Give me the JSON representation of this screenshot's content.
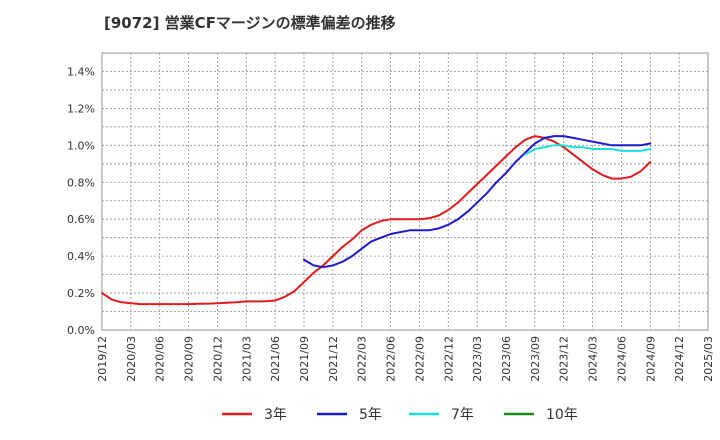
{
  "chart_data": {
    "type": "line",
    "title": "[9072]  営業CFマージンの標準偏差の推移",
    "xlabel": "",
    "ylabel": "",
    "ylim": [
      0,
      0.015
    ],
    "y_ticks": [
      {
        "value": 0.0,
        "label": "0.0%"
      },
      {
        "value": 0.002,
        "label": "0.2%"
      },
      {
        "value": 0.004,
        "label": "0.4%"
      },
      {
        "value": 0.006,
        "label": "0.6%"
      },
      {
        "value": 0.008,
        "label": "0.8%"
      },
      {
        "value": 0.01,
        "label": "1.0%"
      },
      {
        "value": 0.012,
        "label": "1.2%"
      },
      {
        "value": 0.014,
        "label": "1.4%"
      }
    ],
    "x_ticks": [
      "2019/12",
      "2020/03",
      "2020/06",
      "2020/09",
      "2020/12",
      "2021/03",
      "2021/06",
      "2021/09",
      "2021/12",
      "2022/03",
      "2022/06",
      "2022/09",
      "2022/12",
      "2023/03",
      "2023/06",
      "2023/09",
      "2023/12",
      "2024/03",
      "2024/06",
      "2024/09",
      "2024/12",
      "2025/03"
    ],
    "grid": true,
    "legend_position": "bottom",
    "series": [
      {
        "name": "3年",
        "color": "#dd1c1c",
        "x": [
          "2019/12",
          "2020/01",
          "2020/02",
          "2020/03",
          "2020/04",
          "2020/05",
          "2020/06",
          "2020/07",
          "2020/08",
          "2020/09",
          "2020/10",
          "2020/11",
          "2020/12",
          "2021/01",
          "2021/02",
          "2021/03",
          "2021/04",
          "2021/05",
          "2021/06",
          "2021/07",
          "2021/08",
          "2021/09",
          "2021/10",
          "2021/11",
          "2021/12",
          "2022/01",
          "2022/02",
          "2022/03",
          "2022/04",
          "2022/05",
          "2022/06",
          "2022/07",
          "2022/08",
          "2022/09",
          "2022/10",
          "2022/11",
          "2022/12",
          "2023/01",
          "2023/02",
          "2023/03",
          "2023/04",
          "2023/05",
          "2023/06",
          "2023/07",
          "2023/08",
          "2023/09",
          "2023/10",
          "2023/11",
          "2023/12",
          "2024/01",
          "2024/02",
          "2024/03",
          "2024/04",
          "2024/05",
          "2024/06",
          "2024/07",
          "2024/08",
          "2024/09"
        ],
        "values": [
          0.002,
          0.00165,
          0.0015,
          0.00145,
          0.0014,
          0.0014,
          0.0014,
          0.0014,
          0.0014,
          0.0014,
          0.00142,
          0.00143,
          0.00145,
          0.00148,
          0.0015,
          0.00155,
          0.00155,
          0.00156,
          0.0016,
          0.0018,
          0.0021,
          0.0026,
          0.0031,
          0.0035,
          0.004,
          0.0045,
          0.0049,
          0.0054,
          0.0057,
          0.0059,
          0.006,
          0.006,
          0.006,
          0.006,
          0.00605,
          0.0062,
          0.0065,
          0.0069,
          0.0074,
          0.0079,
          0.0084,
          0.0089,
          0.0094,
          0.0099,
          0.0103,
          0.0105,
          0.0104,
          0.0102,
          0.0099,
          0.0095,
          0.0091,
          0.0087,
          0.0084,
          0.0082,
          0.0082,
          0.0083,
          0.0086,
          0.0091
        ]
      },
      {
        "name": "5年",
        "color": "#1c1ccc",
        "x": [
          "2021/09",
          "2021/10",
          "2021/11",
          "2021/12",
          "2022/01",
          "2022/02",
          "2022/03",
          "2022/04",
          "2022/05",
          "2022/06",
          "2022/07",
          "2022/08",
          "2022/09",
          "2022/10",
          "2022/11",
          "2022/12",
          "2023/01",
          "2023/02",
          "2023/03",
          "2023/04",
          "2023/05",
          "2023/06",
          "2023/07",
          "2023/08",
          "2023/09",
          "2023/10",
          "2023/11",
          "2023/12",
          "2024/01",
          "2024/02",
          "2024/03",
          "2024/04",
          "2024/05",
          "2024/06",
          "2024/07",
          "2024/08",
          "2024/09"
        ],
        "values": [
          0.0038,
          0.0035,
          0.0034,
          0.0035,
          0.0037,
          0.004,
          0.0044,
          0.0048,
          0.005,
          0.0052,
          0.0053,
          0.0054,
          0.0054,
          0.0054,
          0.0055,
          0.0057,
          0.006,
          0.0064,
          0.0069,
          0.0074,
          0.008,
          0.0085,
          0.0091,
          0.0096,
          0.0101,
          0.0104,
          0.0105,
          0.0105,
          0.0104,
          0.0103,
          0.0102,
          0.0101,
          0.01,
          0.01,
          0.01,
          0.01,
          0.0101
        ]
      },
      {
        "name": "7年",
        "color": "#1ce0e0",
        "x": [
          "2023/08",
          "2023/09",
          "2023/10",
          "2023/11",
          "2023/12",
          "2024/01",
          "2024/02",
          "2024/03",
          "2024/04",
          "2024/05",
          "2024/06",
          "2024/07",
          "2024/08",
          "2024/09"
        ],
        "values": [
          0.0095,
          0.0098,
          0.0099,
          0.01,
          0.01,
          0.0099,
          0.0099,
          0.0098,
          0.0098,
          0.0098,
          0.0097,
          0.0097,
          0.0097,
          0.0098
        ]
      },
      {
        "name": "10年",
        "color": "#1c8c1c",
        "x": [],
        "values": []
      }
    ]
  }
}
